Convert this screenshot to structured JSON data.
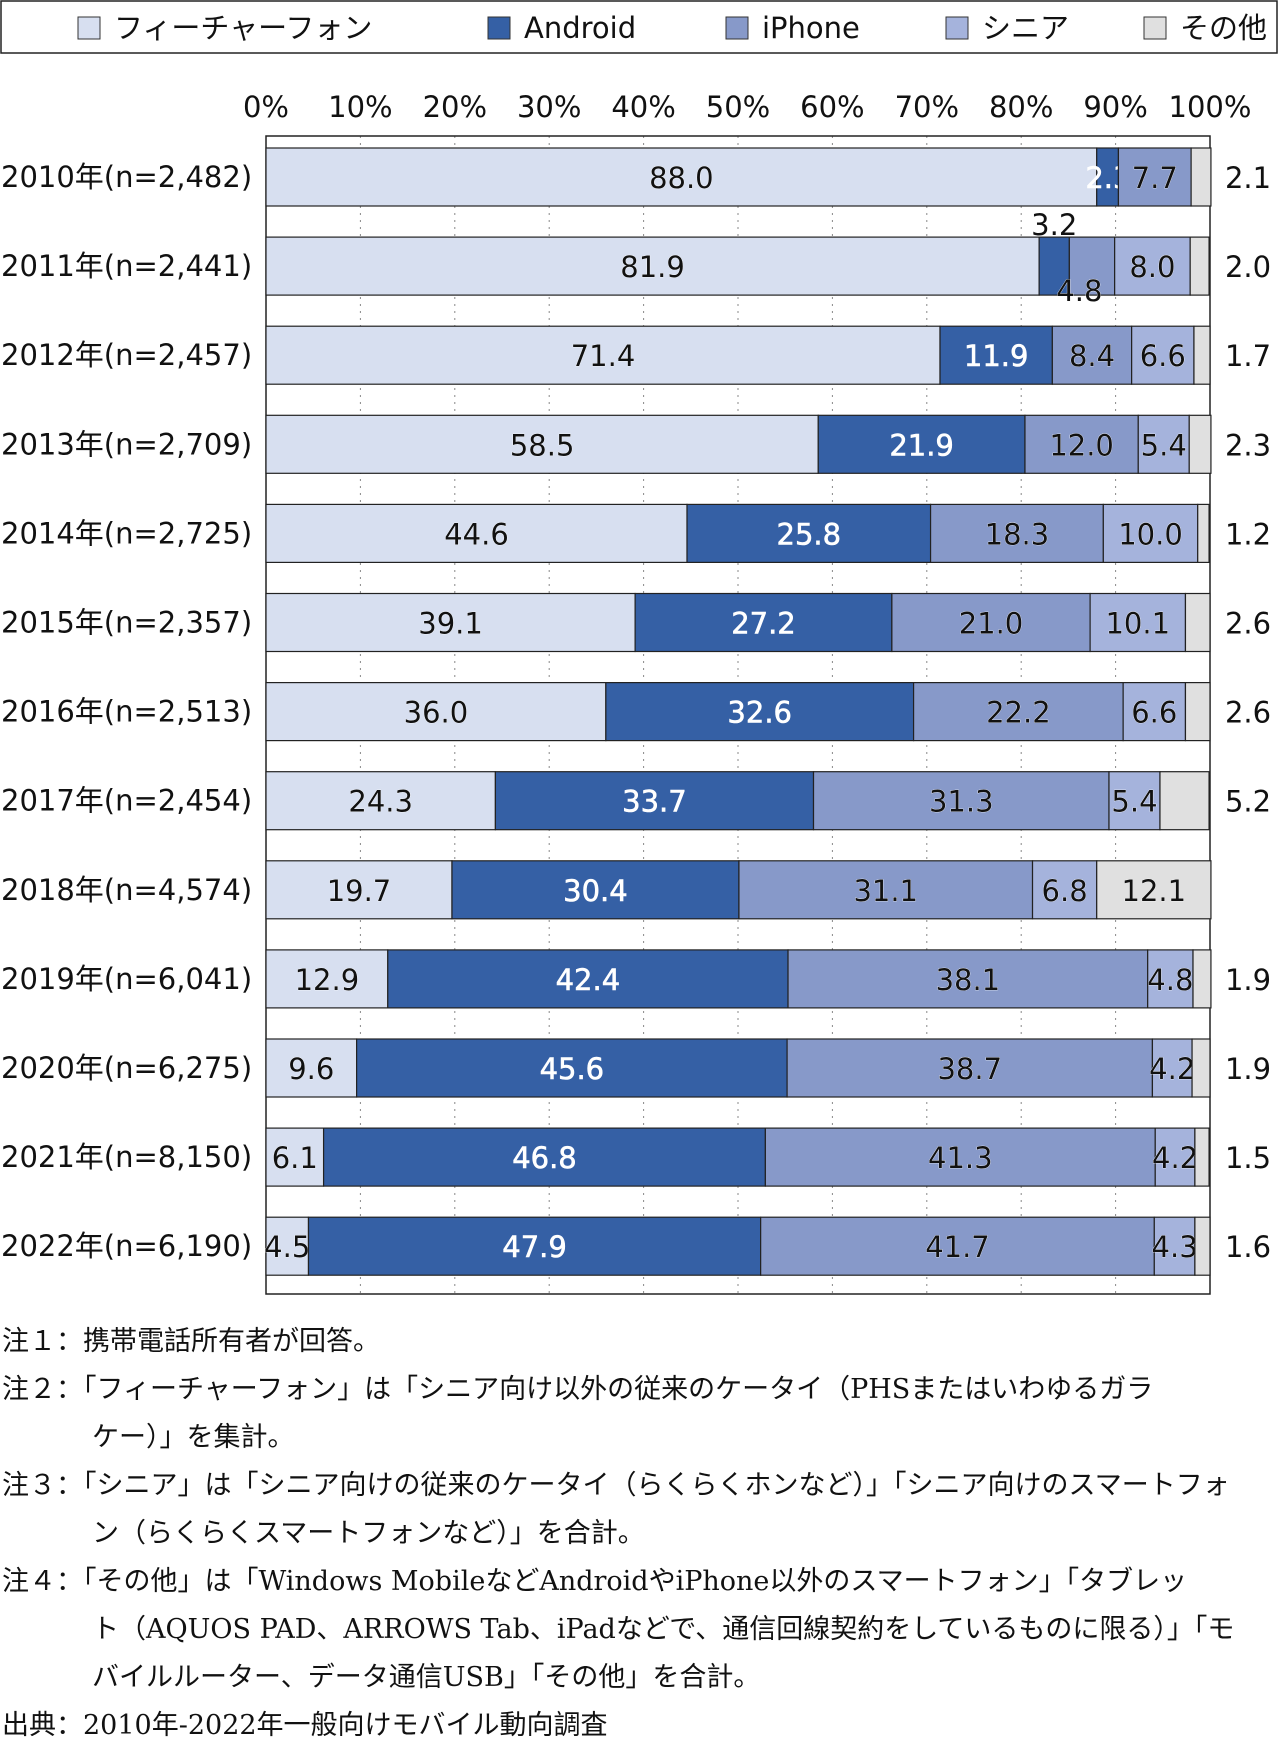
{
  "chart_data": {
    "type": "bar",
    "orientation": "horizontal",
    "stacked": true,
    "percent_axis_ticks": [
      "0%",
      "10%",
      "20%",
      "30%",
      "40%",
      "50%",
      "60%",
      "70%",
      "80%",
      "90%",
      "100%"
    ],
    "xlim": [
      0,
      100
    ],
    "grid": "vertical dotted",
    "legend_position": "top",
    "categories": [
      "2010年(n=2,482)",
      "2011年(n=2,441)",
      "2012年(n=2,457)",
      "2013年(n=2,709)",
      "2014年(n=2,725)",
      "2015年(n=2,357)",
      "2016年(n=2,513)",
      "2017年(n=2,454)",
      "2018年(n=4,574)",
      "2019年(n=6,041)",
      "2020年(n=6,275)",
      "2021年(n=8,150)",
      "2022年(n=6,190)"
    ],
    "series": [
      {
        "name": "フィーチャーフォン",
        "color": "#d7dff0",
        "values": [
          88.0,
          81.9,
          71.4,
          58.5,
          44.6,
          39.1,
          36.0,
          24.3,
          19.7,
          12.9,
          9.6,
          6.1,
          4.5
        ]
      },
      {
        "name": "Android",
        "color": "#3560a5",
        "values": [
          2.3,
          3.2,
          11.9,
          21.9,
          25.8,
          27.2,
          32.6,
          33.7,
          30.4,
          42.4,
          45.6,
          46.8,
          47.9
        ]
      },
      {
        "name": "iPhone",
        "color": "#8799c9",
        "values": [
          7.7,
          4.8,
          8.4,
          12.0,
          18.3,
          21.0,
          22.2,
          31.3,
          31.1,
          38.1,
          38.7,
          41.3,
          41.7
        ]
      },
      {
        "name": "シニア",
        "color": "#a5b3dc",
        "values": [
          null,
          8.0,
          6.6,
          5.4,
          10.0,
          10.1,
          6.6,
          5.4,
          6.8,
          4.8,
          4.2,
          4.2,
          4.3
        ]
      },
      {
        "name": "その他",
        "color": "#e0e0e0",
        "values": [
          2.1,
          2.0,
          1.7,
          2.3,
          1.2,
          2.6,
          2.6,
          5.2,
          12.1,
          1.9,
          1.9,
          1.5,
          1.6
        ]
      }
    ]
  },
  "notes": {
    "note1": "注１：携帯電話所有者が回答。",
    "note2a": "注２：「フィーチャーフォン」は「シニア向け以外の従来のケータイ（PHSまたはいわゆるガラ",
    "note2b": "ケー）」を集計。",
    "note3a": "注３：「シニア」は「シニア向けの従来のケータイ（らくらくホンなど）」「シニア向けのスマートフォ",
    "note3b": "ン（らくらくスマートフォンなど）」を合計。",
    "note4a": "注４：「その他」は「Windows MobileなどAndroidやiPhone以外のスマートフォン」「タブレッ",
    "note4b": "ト（AQUOS PAD、ARROWS Tab、iPadなどで、通信回線契約をしているものに限る）」「モ",
    "note4c": "バイルルーター、データ通信USB」「その他」を合計。",
    "source": "出典：2010年-2022年一般向けモバイル動向調査"
  }
}
